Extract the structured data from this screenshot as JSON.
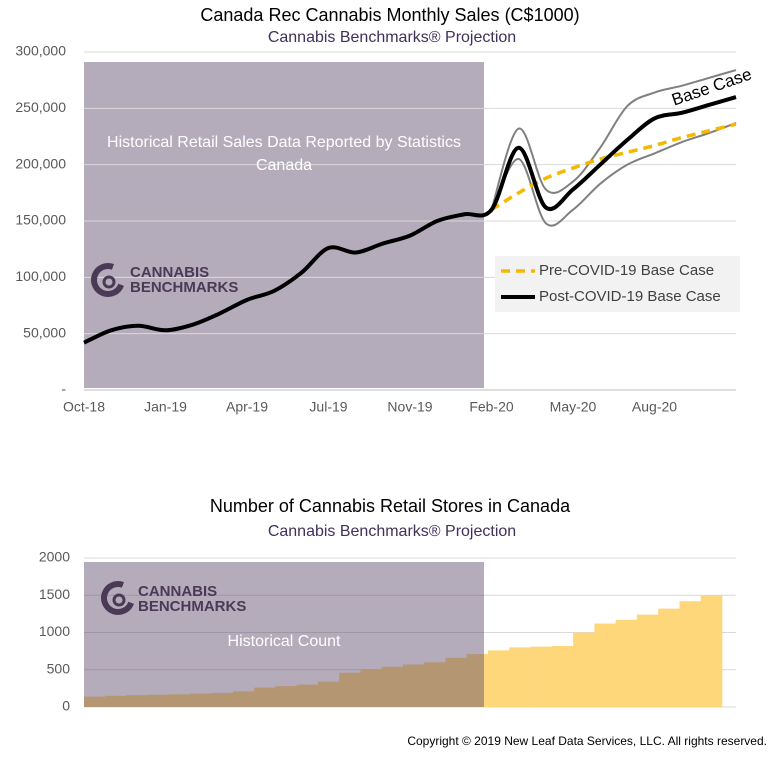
{
  "chart_data": [
    {
      "type": "line",
      "title": "Canada Rec Cannabis Monthly Sales (C$1000)",
      "subtitle": "Cannabis Benchmarks® Projection",
      "shade_label": "Historical Retail Sales Data Reported by Statistics Canada",
      "logo_text": [
        "CANNABIS",
        "BENCHMARKS"
      ],
      "annotation": "Base Case",
      "categories": [
        "Oct-18",
        null,
        null,
        "Jan-19",
        null,
        null,
        "Apr-19",
        null,
        null,
        "Jul-19",
        null,
        null,
        "Nov-19",
        null,
        null,
        "Feb-20",
        null,
        null,
        "May-20",
        null,
        null,
        "Aug-20",
        null,
        null,
        null
      ],
      "series": [
        {
          "name": "Pre-COVID-19 Base Case",
          "color": "#f5b800",
          "style": "dashed",
          "values": [
            null,
            null,
            null,
            null,
            null,
            null,
            null,
            null,
            null,
            null,
            null,
            null,
            null,
            null,
            null,
            160000,
            175000,
            188000,
            197000,
            205000,
            211000,
            217000,
            224000,
            230000,
            236000
          ]
        },
        {
          "name": "Post-COVID-19 Base Case",
          "color": "#000000",
          "style": "solid",
          "values": [
            42000,
            53000,
            57000,
            53000,
            58000,
            68000,
            80000,
            88000,
            104000,
            126000,
            122000,
            130000,
            137000,
            150000,
            156000,
            160000,
            215000,
            162000,
            178000,
            200000,
            222000,
            241000,
            246000,
            253000,
            260000
          ]
        },
        {
          "color": "#808080",
          "style": "thin",
          "values": [
            null,
            null,
            null,
            null,
            null,
            null,
            null,
            null,
            null,
            null,
            null,
            null,
            null,
            null,
            null,
            160000,
            232000,
            178000,
            185000,
            215000,
            252000,
            264000,
            270000,
            277000,
            284000
          ]
        },
        {
          "color": "#808080",
          "style": "thin",
          "values": [
            null,
            null,
            null,
            null,
            null,
            null,
            null,
            null,
            null,
            null,
            null,
            null,
            null,
            null,
            null,
            158000,
            205000,
            148000,
            160000,
            183000,
            200000,
            210000,
            220000,
            228000,
            237000
          ]
        }
      ],
      "ylim": [
        0,
        300000
      ],
      "yticks": [
        {
          "value": 0,
          "label": "-"
        },
        {
          "value": 50000,
          "label": "50,000"
        },
        {
          "value": 100000,
          "label": "100,000"
        },
        {
          "value": 150000,
          "label": "150,000"
        },
        {
          "value": 200000,
          "label": "200,000"
        },
        {
          "value": 250000,
          "label": "250,000"
        },
        {
          "value": 300000,
          "label": "300,000"
        }
      ],
      "grid": true,
      "legend": "right"
    },
    {
      "type": "bar",
      "title": "Number of Cannabis Retail Stores in Canada",
      "subtitle": "Cannabis Benchmarks® Projection",
      "shade_label": "Historical Count",
      "logo_text": [
        "CANNABIS",
        "BENCHMARKS"
      ],
      "color": "#fdd77a",
      "values": [
        140,
        150,
        160,
        165,
        170,
        180,
        190,
        210,
        260,
        280,
        300,
        340,
        460,
        510,
        540,
        570,
        600,
        660,
        710,
        760,
        800,
        810,
        820,
        1000,
        1120,
        1170,
        1240,
        1320,
        1420,
        1500
      ],
      "ylim": [
        0,
        2000
      ],
      "yticks": [
        0,
        500,
        1000,
        1500,
        2000
      ],
      "grid": true
    }
  ],
  "copyright": "Copyright © 2019 New Leaf Data Services, LLC. All rights reserved."
}
